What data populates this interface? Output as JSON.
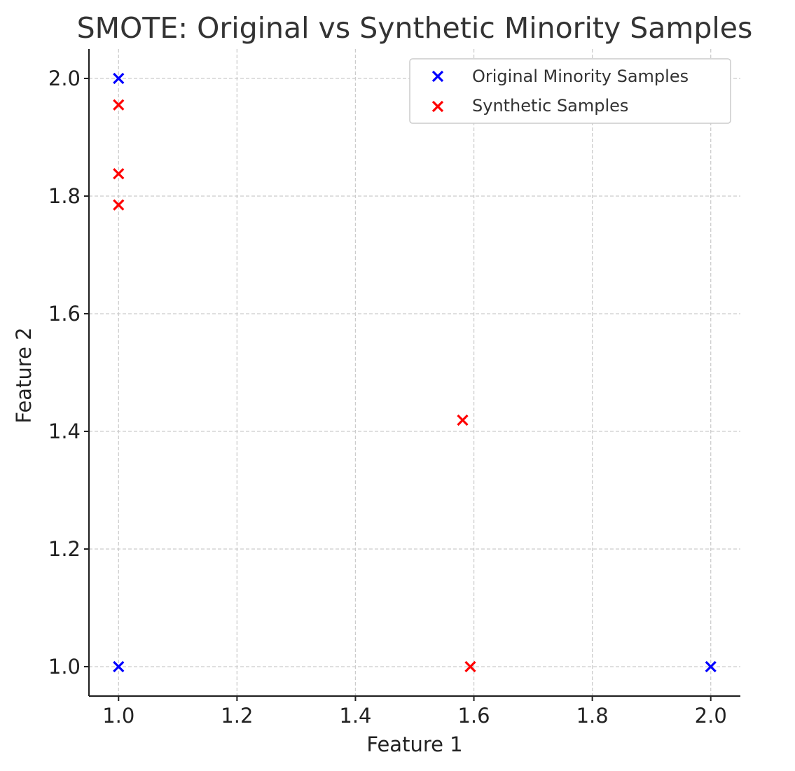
{
  "chart_data": {
    "type": "scatter",
    "title": "SMOTE: Original vs Synthetic Minority Samples",
    "xlabel": "Feature 1",
    "ylabel": "Feature 2",
    "xlim": [
      0.95,
      2.05
    ],
    "ylim": [
      0.95,
      2.05
    ],
    "x_ticks": [
      1.0,
      1.2,
      1.4,
      1.6,
      1.8,
      2.0
    ],
    "y_ticks": [
      1.0,
      1.2,
      1.4,
      1.6,
      1.8,
      2.0
    ],
    "x_tick_labels": [
      "1.0",
      "1.2",
      "1.4",
      "1.6",
      "1.8",
      "2.0"
    ],
    "y_tick_labels": [
      "1.0",
      "1.2",
      "1.4",
      "1.6",
      "1.8",
      "2.0"
    ],
    "grid": true,
    "legend_position": "top-right",
    "series": [
      {
        "name": "Original Minority Samples",
        "color": "#0000ff",
        "marker": "x",
        "points": [
          {
            "x": 1.0,
            "y": 2.0
          },
          {
            "x": 1.0,
            "y": 1.0
          },
          {
            "x": 2.0,
            "y": 1.0
          }
        ]
      },
      {
        "name": "Synthetic Samples",
        "color": "#ff0000",
        "marker": "x",
        "points": [
          {
            "x": 1.0,
            "y": 1.955
          },
          {
            "x": 1.0,
            "y": 1.838
          },
          {
            "x": 1.0,
            "y": 1.785
          },
          {
            "x": 1.581,
            "y": 1.419
          },
          {
            "x": 1.594,
            "y": 1.0
          }
        ]
      }
    ]
  }
}
